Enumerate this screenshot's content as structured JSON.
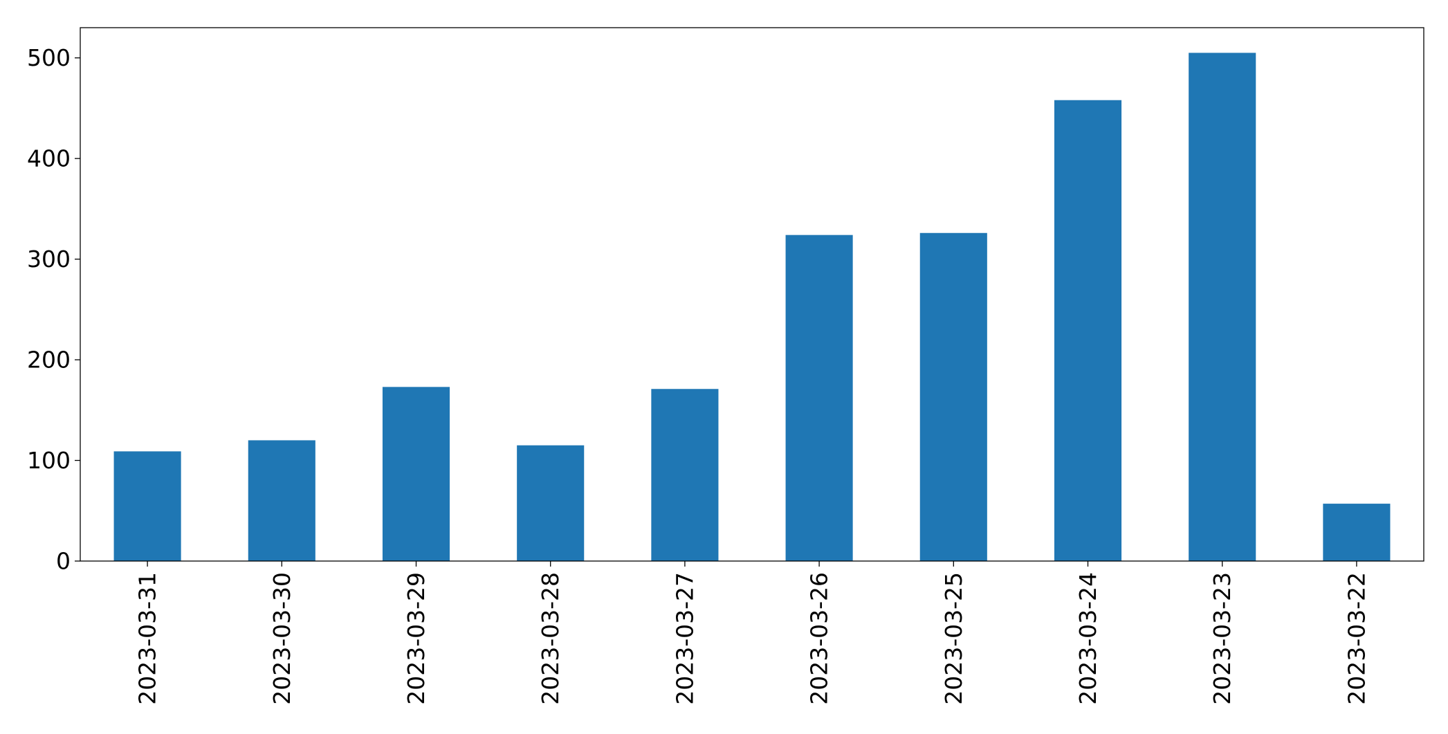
{
  "chart_data": {
    "type": "bar",
    "title": "",
    "xlabel": "",
    "ylabel": "",
    "categories": [
      "2023-03-31",
      "2023-03-30",
      "2023-03-29",
      "2023-03-28",
      "2023-03-27",
      "2023-03-26",
      "2023-03-25",
      "2023-03-24",
      "2023-03-23",
      "2023-03-22"
    ],
    "values": [
      109,
      120,
      173,
      115,
      171,
      324,
      326,
      458,
      505,
      57
    ],
    "ylim": [
      0,
      530
    ],
    "yticks": [
      0,
      100,
      200,
      300,
      400,
      500
    ],
    "grid": false,
    "legend": "none",
    "bar_color": "#1f77b4",
    "xtick_rotation": "vertical"
  }
}
